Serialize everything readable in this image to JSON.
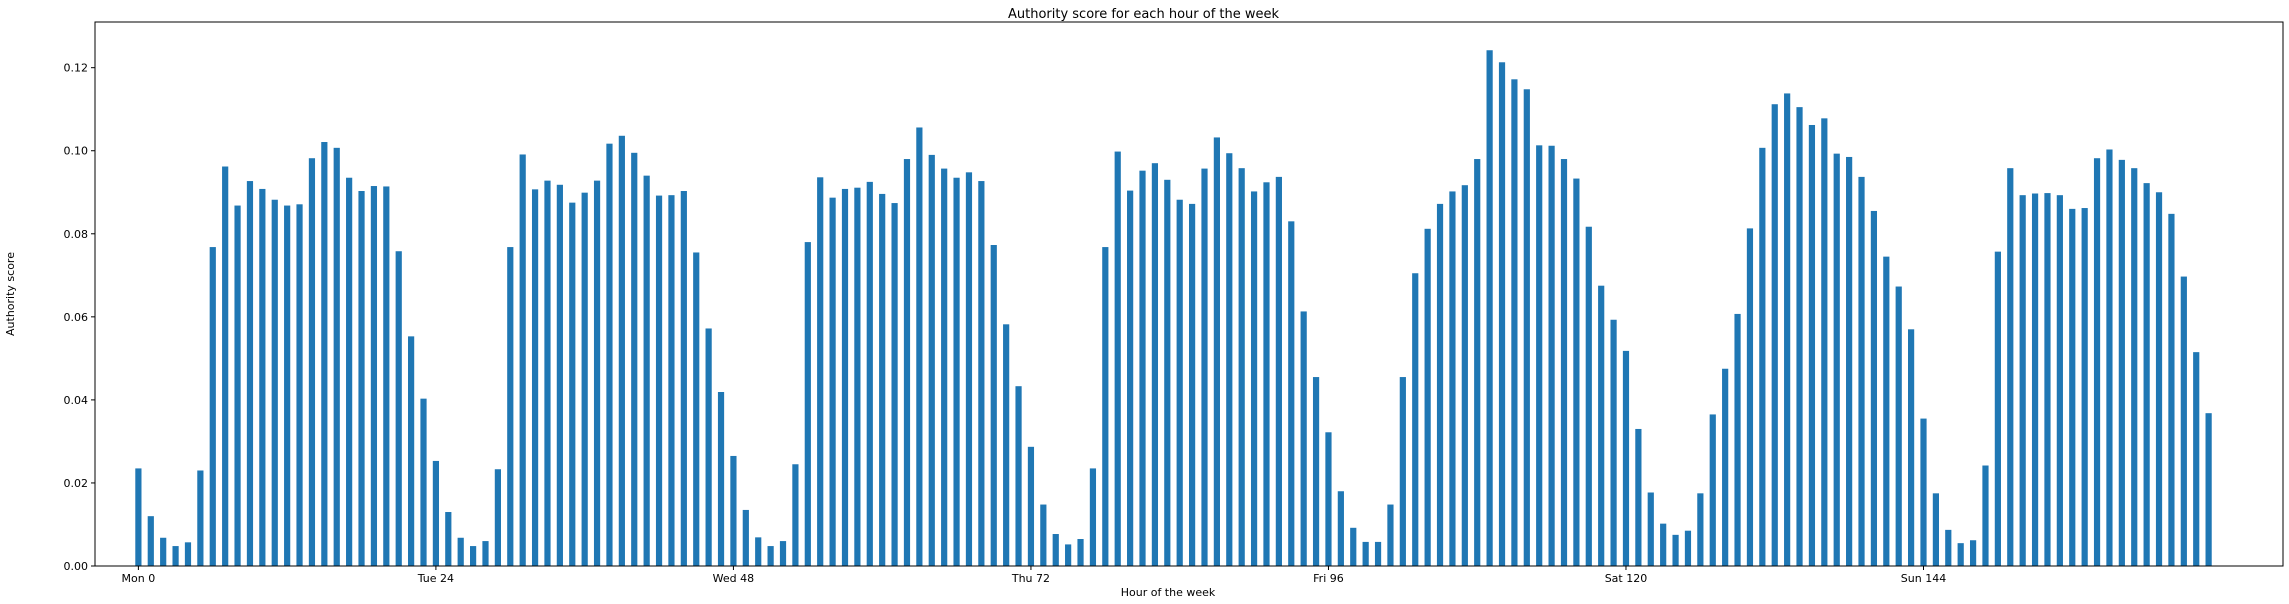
{
  "chart_data": {
    "type": "bar",
    "title": "Authority score for each hour of the week",
    "xlabel": "Hour of the week",
    "ylabel": "Authority score",
    "bar_color": "#1f77b4",
    "grid": false,
    "legend": "none",
    "xlim": [
      -3.5,
      173
    ],
    "ylim": [
      0,
      0.131
    ],
    "x_ticks": [
      {
        "value": 0,
        "label": "Mon 0"
      },
      {
        "value": 24,
        "label": "Tue 24"
      },
      {
        "value": 48,
        "label": "Wed 48"
      },
      {
        "value": 72,
        "label": "Thu 72"
      },
      {
        "value": 96,
        "label": "Fri 96"
      },
      {
        "value": 120,
        "label": "Sat 120"
      },
      {
        "value": 144,
        "label": "Sun 144"
      }
    ],
    "y_ticks": [
      {
        "value": 0.0,
        "label": "0.00"
      },
      {
        "value": 0.02,
        "label": "0.02"
      },
      {
        "value": 0.04,
        "label": "0.04"
      },
      {
        "value": 0.06,
        "label": "0.06"
      },
      {
        "value": 0.08,
        "label": "0.08"
      },
      {
        "value": 0.1,
        "label": "0.10"
      },
      {
        "value": 0.12,
        "label": "0.12"
      }
    ],
    "x": [
      0,
      1,
      2,
      3,
      4,
      5,
      6,
      7,
      8,
      9,
      10,
      11,
      12,
      13,
      14,
      15,
      16,
      17,
      18,
      19,
      20,
      21,
      22,
      23,
      24,
      25,
      26,
      27,
      28,
      29,
      30,
      31,
      32,
      33,
      34,
      35,
      36,
      37,
      38,
      39,
      40,
      41,
      42,
      43,
      44,
      45,
      46,
      47,
      48,
      49,
      50,
      51,
      52,
      53,
      54,
      55,
      56,
      57,
      58,
      59,
      60,
      61,
      62,
      63,
      64,
      65,
      66,
      67,
      68,
      69,
      70,
      71,
      72,
      73,
      74,
      75,
      76,
      77,
      78,
      79,
      80,
      81,
      82,
      83,
      84,
      85,
      86,
      87,
      88,
      89,
      90,
      91,
      92,
      93,
      94,
      95,
      96,
      97,
      98,
      99,
      100,
      101,
      102,
      103,
      104,
      105,
      106,
      107,
      108,
      109,
      110,
      111,
      112,
      113,
      114,
      115,
      116,
      117,
      118,
      119,
      120,
      121,
      122,
      123,
      124,
      125,
      126,
      127,
      128,
      129,
      130,
      131,
      132,
      133,
      134,
      135,
      136,
      137,
      138,
      139,
      140,
      141,
      142,
      143,
      144,
      145,
      146,
      147,
      148,
      149,
      150,
      151,
      152,
      153,
      154,
      155,
      156,
      157,
      158,
      159,
      160,
      161,
      162,
      163,
      164,
      165,
      166,
      167
    ],
    "values": [
      0.0235,
      0.012,
      0.0068,
      0.0048,
      0.0057,
      0.023,
      0.0768,
      0.0962,
      0.0868,
      0.0927,
      0.0908,
      0.0882,
      0.0868,
      0.0871,
      0.0982,
      0.1021,
      0.1007,
      0.0935,
      0.0903,
      0.0915,
      0.0914,
      0.0758,
      0.0553,
      0.0403,
      0.0253,
      0.013,
      0.0068,
      0.0048,
      0.006,
      0.0233,
      0.0768,
      0.0991,
      0.0907,
      0.0928,
      0.0918,
      0.0875,
      0.0899,
      0.0928,
      0.1017,
      0.1036,
      0.0995,
      0.094,
      0.0892,
      0.0893,
      0.0903,
      0.0755,
      0.0572,
      0.0419,
      0.0265,
      0.0135,
      0.0069,
      0.0048,
      0.006,
      0.0245,
      0.078,
      0.0936,
      0.0887,
      0.0908,
      0.0911,
      0.0925,
      0.0896,
      0.0874,
      0.098,
      0.1056,
      0.099,
      0.0957,
      0.0935,
      0.0948,
      0.0927,
      0.0773,
      0.0582,
      0.0433,
      0.0287,
      0.0148,
      0.0077,
      0.0052,
      0.0065,
      0.0235,
      0.0768,
      0.0998,
      0.0904,
      0.0952,
      0.097,
      0.093,
      0.0882,
      0.0872,
      0.0957,
      0.1032,
      0.0994,
      0.0958,
      0.0902,
      0.0924,
      0.0937,
      0.083,
      0.0613,
      0.0455,
      0.0322,
      0.018,
      0.0092,
      0.0058,
      0.0058,
      0.0148,
      0.0455,
      0.0705,
      0.0812,
      0.0872,
      0.0902,
      0.0917,
      0.098,
      0.1242,
      0.1213,
      0.1172,
      0.1148,
      0.1013,
      0.1012,
      0.098,
      0.0933,
      0.0817,
      0.0675,
      0.0593,
      0.0518,
      0.033,
      0.0177,
      0.0102,
      0.0075,
      0.0085,
      0.0175,
      0.0365,
      0.0475,
      0.0607,
      0.0813,
      0.1007,
      0.1112,
      0.1138,
      0.1105,
      0.1062,
      0.1078,
      0.0993,
      0.0985,
      0.0937,
      0.0855,
      0.0745,
      0.0673,
      0.057,
      0.0355,
      0.0175,
      0.0087,
      0.0055,
      0.0062,
      0.0242,
      0.0757,
      0.0958,
      0.0893,
      0.0897,
      0.0898,
      0.0893,
      0.086,
      0.0862,
      0.0982,
      0.1003,
      0.0978,
      0.0958,
      0.0922,
      0.09,
      0.0848,
      0.0697,
      0.0515,
      0.0368
    ]
  }
}
